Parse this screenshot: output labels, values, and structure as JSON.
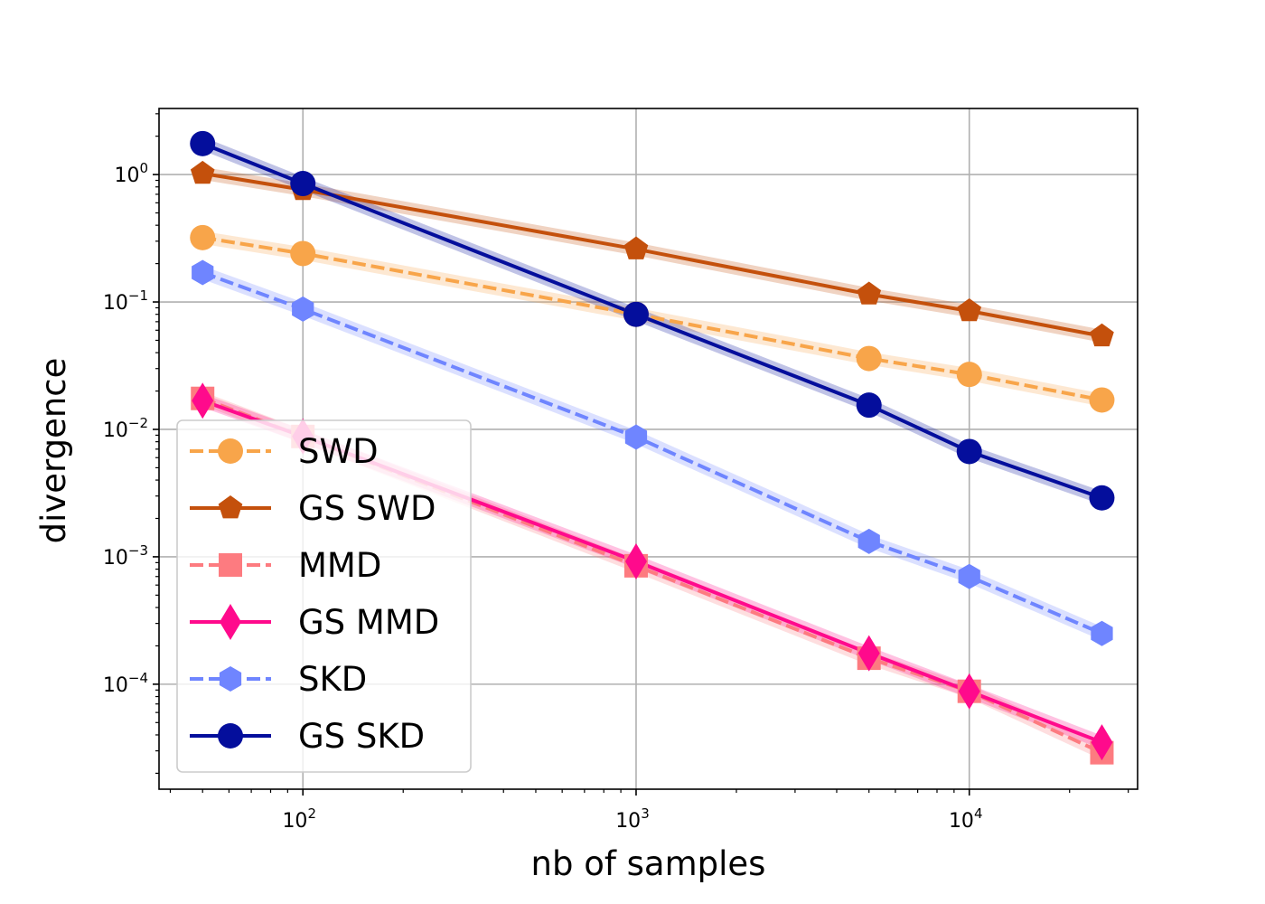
{
  "chart_data": {
    "type": "line",
    "xscale": "log",
    "yscale": "log",
    "xlabel": "nb of samples",
    "ylabel": "divergence",
    "xlim": [
      37,
      32000
    ],
    "ylim": [
      1.5e-05,
      3.3
    ],
    "grid": true,
    "legend_position": "lower-left",
    "x": [
      50,
      100,
      1000,
      5000,
      10000,
      25000
    ],
    "x_ticks": [
      {
        "value": 100,
        "base": "10",
        "exp": "2"
      },
      {
        "value": 1000,
        "base": "10",
        "exp": "3"
      },
      {
        "value": 10000,
        "base": "10",
        "exp": "4"
      }
    ],
    "y_ticks": [
      {
        "value": 1,
        "base": "10",
        "exp": "0"
      },
      {
        "value": 0.1,
        "base": "10",
        "exp": "−1"
      },
      {
        "value": 0.01,
        "base": "10",
        "exp": "−2"
      },
      {
        "value": 0.001,
        "base": "10",
        "exp": "−3"
      },
      {
        "value": 0.0001,
        "base": "10",
        "exp": "−4"
      }
    ],
    "series": [
      {
        "name": "SWD",
        "color": "#f8a54a",
        "marker": "circle",
        "dash": true,
        "values": [
          0.32,
          0.24,
          0.08,
          0.036,
          0.027,
          0.017
        ]
      },
      {
        "name": "GS SWD",
        "color": "#c4500c",
        "marker": "pentagon",
        "dash": false,
        "values": [
          1.02,
          0.76,
          0.26,
          0.115,
          0.085,
          0.054
        ]
      },
      {
        "name": "MMD",
        "color": "#fd7b80",
        "marker": "square",
        "dash": true,
        "values": [
          0.0175,
          0.0088,
          0.00085,
          0.00016,
          8.8e-05,
          2.9e-05
        ]
      },
      {
        "name": "GS MMD",
        "color": "#ff0a8c",
        "marker": "diamond",
        "dash": false,
        "values": [
          0.0168,
          0.0088,
          0.00092,
          0.000175,
          8.8e-05,
          3.5e-05
        ]
      },
      {
        "name": "SKD",
        "color": "#6f85ff",
        "marker": "hexagon",
        "dash": true,
        "values": [
          0.17,
          0.088,
          0.0087,
          0.00132,
          0.0007,
          0.00025
        ]
      },
      {
        "name": "GS SKD",
        "color": "#040e9c",
        "marker": "circle",
        "dash": false,
        "values": [
          1.75,
          0.85,
          0.08,
          0.0155,
          0.0067,
          0.0029
        ]
      }
    ]
  }
}
